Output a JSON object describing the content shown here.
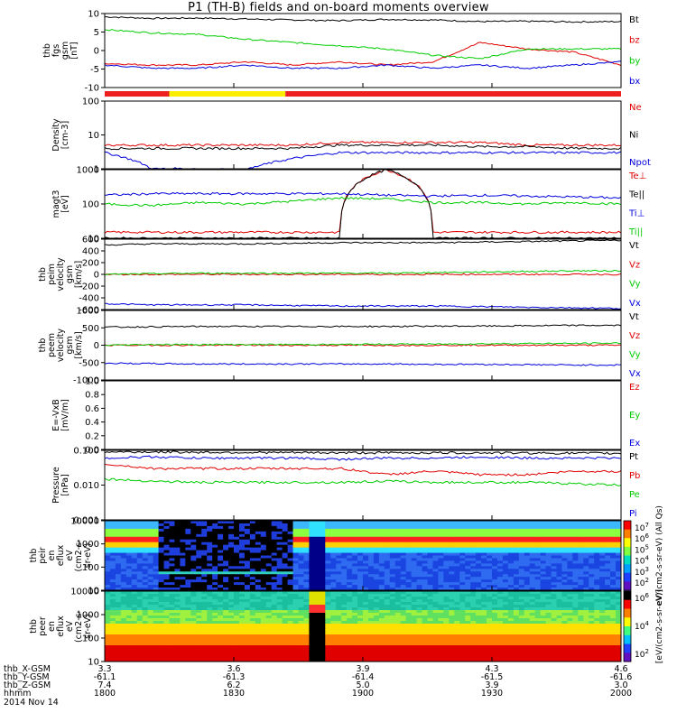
{
  "title": "P1 (TH-B) fields and on-board moments overview",
  "footer": {
    "row_labels": [
      "thb_X-GSM",
      "thb_Y-GSM",
      "thb_Z-GSM",
      "hhmm",
      "2014 Nov 14"
    ],
    "columns": [
      [
        "3.3",
        "-61.1",
        "7.4",
        "1800"
      ],
      [
        "3.6",
        "-61.3",
        "6.2",
        "1830"
      ],
      [
        "3.9",
        "-61.4",
        "5.0",
        "1900"
      ],
      [
        "4.3",
        "-61.5",
        "3.9",
        "1930"
      ],
      [
        "4.6",
        "-61.6",
        "3.0",
        "2000"
      ]
    ]
  },
  "colorbars": [
    {
      "label": "eV/(cm2-s-sr-eV) (All Qs)",
      "ticks": [
        "10^7",
        "10^6",
        "10^5",
        "10^4",
        "10^3",
        "10^2"
      ]
    },
    {
      "label": "[eV/(cm2-s-sr-eV)]",
      "ticks": [
        "10^6",
        "10^4",
        "10^2"
      ]
    }
  ],
  "chart_data": [
    {
      "type": "line",
      "ylabel": [
        "thb",
        "fgs",
        "gsm",
        "[nT]"
      ],
      "yticks": [
        "10",
        "5",
        "0",
        "-5",
        "-10"
      ],
      "ylim": [
        -12,
        11
      ],
      "mode_bar": {
        "colors": [
          "#ee2020",
          "#ffee00",
          "#ee2020"
        ],
        "breaks_hhmm": [
          "1800",
          "1815",
          "1842",
          "2000"
        ]
      },
      "series": [
        {
          "name": "Bt",
          "color": "#000000",
          "values": [
            10,
            9.5,
            9.6,
            9.3,
            9.0,
            8.8,
            9.2,
            9.0,
            8.5,
            8.6,
            8.4,
            8.5
          ]
        },
        {
          "name": "bz",
          "color": "#e00000",
          "values": [
            -4.5,
            -5,
            -5,
            -4,
            -5,
            -4,
            -5,
            -4,
            2,
            0,
            -1,
            -5
          ]
        },
        {
          "name": "by",
          "color": "#00cc00",
          "values": [
            6,
            5,
            4.5,
            3,
            2,
            1,
            0,
            -2,
            -3,
            0,
            0,
            0
          ]
        },
        {
          "name": "bx",
          "color": "#0000dd",
          "values": [
            -5,
            -6,
            -6,
            -5,
            -6,
            -6,
            -5,
            -6,
            -5,
            -6,
            -5,
            -4
          ]
        }
      ]
    },
    {
      "type": "line",
      "scale": "log",
      "ylabel": [
        "Density",
        "[cm-3]"
      ],
      "yticks": [
        "100",
        "10",
        "1"
      ],
      "series": [
        {
          "name": "Ne",
          "color": "#e00000",
          "values": [
            5,
            5,
            5,
            5,
            5,
            6,
            6,
            6,
            6,
            5,
            5,
            5
          ]
        },
        {
          "name": "Ni",
          "color": "#000000",
          "values": [
            4,
            4,
            4,
            4,
            4,
            5,
            5,
            5,
            4.5,
            4.5,
            4,
            4
          ]
        },
        {
          "name": "Npot",
          "color": "#0000dd",
          "values": [
            3,
            1,
            1,
            0.9,
            2,
            3,
            3,
            3,
            3,
            3,
            3,
            3
          ]
        }
      ]
    },
    {
      "type": "line",
      "scale": "log",
      "ylabel": [
        "magt3",
        "[eV]"
      ],
      "yticks": [
        "1000",
        "100",
        "10"
      ],
      "series": [
        {
          "name": "Te⊥",
          "color": "#e00000",
          "values": [
            15,
            15,
            15,
            15,
            15,
            15,
            1000,
            15,
            15,
            15,
            15,
            15
          ]
        },
        {
          "name": "Te||",
          "color": "#000000",
          "values": [
            10,
            10,
            10,
            10,
            10,
            10,
            1000,
            10,
            10,
            10,
            10,
            10
          ]
        },
        {
          "name": "Ti⊥",
          "color": "#0000dd",
          "values": [
            180,
            200,
            200,
            200,
            200,
            200,
            180,
            170,
            180,
            170,
            160,
            150
          ]
        },
        {
          "name": "Ti||",
          "color": "#00cc00",
          "values": [
            100,
            90,
            110,
            100,
            120,
            150,
            140,
            110,
            110,
            100,
            110,
            100
          ]
        }
      ]
    },
    {
      "type": "line",
      "ylabel": [
        "thb",
        "peim",
        "velocity",
        "gsm",
        "[km/s]"
      ],
      "yticks": [
        "600",
        "400",
        "200",
        "0",
        "-200",
        "-400",
        "-600"
      ],
      "series": [
        {
          "name": "Vt",
          "color": "#000000",
          "values": [
            500,
            520,
            520,
            520,
            530,
            540,
            540,
            540,
            550,
            560,
            570,
            580
          ]
        },
        {
          "name": "Vz",
          "color": "#e00000",
          "values": [
            0,
            0,
            0,
            0,
            0,
            0,
            0,
            0,
            0,
            0,
            0,
            0
          ]
        },
        {
          "name": "Vy",
          "color": "#00cc00",
          "values": [
            0,
            10,
            20,
            20,
            20,
            20,
            20,
            30,
            40,
            50,
            60,
            60
          ]
        },
        {
          "name": "Vx",
          "color": "#0000dd",
          "values": [
            -500,
            -520,
            -520,
            -520,
            -530,
            -540,
            -540,
            -540,
            -550,
            -560,
            -570,
            -580
          ]
        }
      ]
    },
    {
      "type": "line",
      "ylabel": [
        "thb",
        "peem",
        "velocity",
        "gsm",
        "[km/s]"
      ],
      "yticks": [
        "1000",
        "500",
        "0",
        "-500",
        "-1000"
      ],
      "series": [
        {
          "name": "Vt",
          "color": "#000000",
          "values": [
            520,
            530,
            540,
            540,
            540,
            540,
            540,
            550,
            550,
            560,
            570,
            570
          ]
        },
        {
          "name": "Vz",
          "color": "#e00000",
          "values": [
            0,
            0,
            0,
            0,
            0,
            0,
            0,
            0,
            0,
            0,
            0,
            0
          ]
        },
        {
          "name": "Vy",
          "color": "#00cc00",
          "values": [
            0,
            20,
            20,
            20,
            20,
            20,
            30,
            30,
            40,
            50,
            50,
            60
          ]
        },
        {
          "name": "Vx",
          "color": "#0000dd",
          "values": [
            -520,
            -530,
            -540,
            -540,
            -540,
            -540,
            -540,
            -550,
            -550,
            -560,
            -570,
            -570
          ]
        }
      ]
    },
    {
      "type": "line",
      "ylabel": [
        "E=-VxB",
        "[mV/m]"
      ],
      "yticks": [
        "1.0",
        "0.8",
        "0.6",
        "0.4",
        "0.2",
        "0.0"
      ],
      "series": [
        {
          "name": "Ez",
          "color": "#e00000",
          "values": []
        },
        {
          "name": "Ey",
          "color": "#00cc00",
          "values": []
        },
        {
          "name": "Ex",
          "color": "#0000dd",
          "values": []
        }
      ]
    },
    {
      "type": "line",
      "scale": "log",
      "ylabel": [
        "Pressure",
        "[nPa]"
      ],
      "yticks": [
        "0.100",
        "0.010",
        "0.001"
      ],
      "series": [
        {
          "name": "Pt",
          "color": "#000000",
          "values": [
            0.09,
            0.09,
            0.088,
            0.087,
            0.086,
            0.085,
            0.085,
            0.085,
            0.085,
            0.084,
            0.083,
            0.082
          ]
        },
        {
          "name": "Pb",
          "color": "#e00000",
          "values": [
            0.04,
            0.03,
            0.03,
            0.03,
            0.03,
            0.03,
            0.02,
            0.025,
            0.02,
            0.02,
            0.025,
            0.025
          ]
        },
        {
          "name": "Pe",
          "color": "#00cc00",
          "values": [
            0.015,
            0.013,
            0.012,
            0.012,
            0.012,
            0.012,
            0.013,
            0.012,
            0.012,
            0.012,
            0.011,
            0.01
          ]
        },
        {
          "name": "Pi",
          "color": "#0000dd",
          "values": [
            0.06,
            0.065,
            0.06,
            0.06,
            0.06,
            0.055,
            0.06,
            0.06,
            0.065,
            0.06,
            0.06,
            0.06
          ]
        }
      ]
    },
    {
      "type": "heatmap",
      "scale": "log",
      "ylabel": [
        "thb",
        "peir",
        "en",
        "eflux",
        "eV",
        "(cm2-s-",
        "sr-eV)"
      ],
      "yticks": [
        "10000",
        "1000",
        "100",
        "10"
      ]
    },
    {
      "type": "heatmap",
      "scale": "log",
      "ylabel": [
        "thb",
        "peer",
        "en",
        "eflux",
        "eV",
        "(cm2-s-",
        "sr-eV)"
      ],
      "yticks": [
        "10000",
        "1000",
        "100",
        "10"
      ]
    }
  ]
}
